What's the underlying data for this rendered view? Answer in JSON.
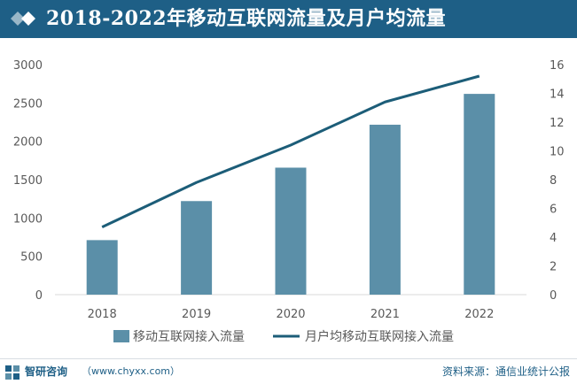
{
  "header": {
    "title": "2018-2022年移动互联网流量及月户均流量"
  },
  "chart_data": {
    "type": "bar",
    "categories": [
      "2018",
      "2019",
      "2020",
      "2021",
      "2022"
    ],
    "series": [
      {
        "name": "移动互联网接入流量",
        "type": "bar",
        "axis": "left",
        "color": "#5b8fa8",
        "values": [
          711,
          1220,
          1656,
          2216,
          2618
        ]
      },
      {
        "name": "月户均移动互联网接入流量",
        "type": "line",
        "axis": "right",
        "color": "#1c5d78",
        "values": [
          4.7,
          7.8,
          10.4,
          13.4,
          15.2
        ]
      }
    ],
    "y_left": {
      "min": 0,
      "max": 3000,
      "ticks": [
        0,
        500,
        1000,
        1500,
        2000,
        2500,
        3000
      ]
    },
    "y_right": {
      "min": 0,
      "max": 16,
      "ticks": [
        0,
        2,
        4,
        6,
        8,
        10,
        12,
        14,
        16
      ]
    },
    "grid": false,
    "legend_position": "bottom"
  },
  "footer": {
    "brand": "智研咨询",
    "url": "（www.chyxx.com）",
    "source": "资料来源：通信业统计公报"
  },
  "colors": {
    "header_bg": "#1e5f86",
    "bar": "#5b8fa8",
    "line": "#1c5d78",
    "axis_text": "#595959"
  }
}
